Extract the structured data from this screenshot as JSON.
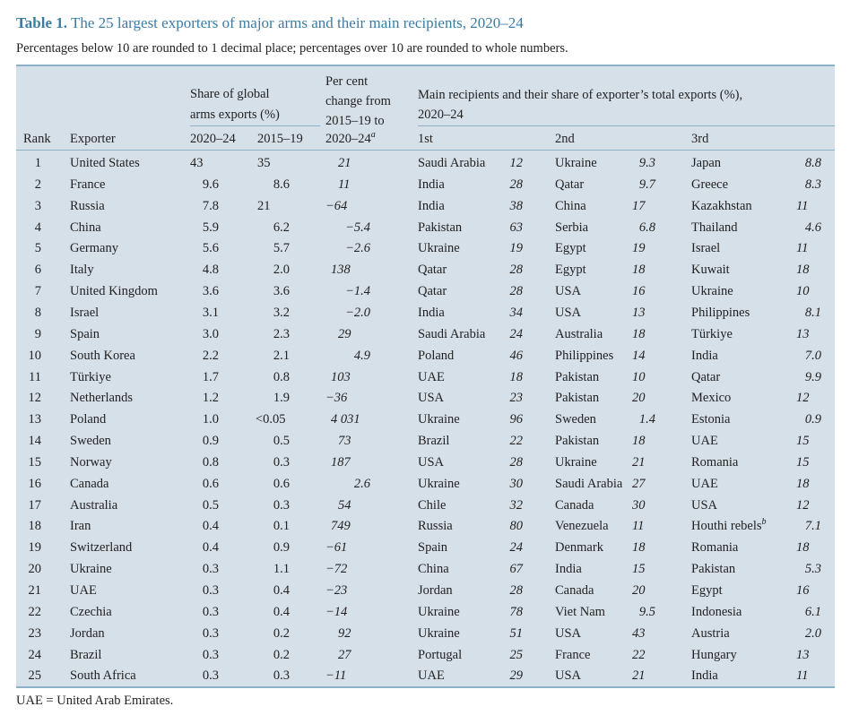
{
  "title": {
    "label": "Table 1.",
    "text": "The 25 largest exporters of major arms and their main recipients, 2020–24"
  },
  "subtitle": "Percentages below 10 are rounded to 1 decimal place; percentages over 10 are rounded to whole numbers.",
  "headers": {
    "rank": "Rank",
    "exporter": "Exporter",
    "share_group_line1": "Share of global",
    "share_group_line2": "arms exports (%)",
    "share_2020_24": "2020–24",
    "share_2015_19": "2015–19",
    "change_line1": "Per cent",
    "change_line2": "change from",
    "change_line3": "2015–19 to",
    "change_line4": "2020–24",
    "change_note": "a",
    "recipients_line1": "Main recipients and their share of exporter’s total exports (%),",
    "recipients_line2": "2020–24",
    "first": "1st",
    "second": "2nd",
    "third": "3rd"
  },
  "rows": [
    {
      "rank": "1",
      "exporter": "United States",
      "s2024": "43",
      "s2019": "35",
      "change": "21",
      "r1": "Saudi Arabia",
      "v1": "12",
      "r2": "Ukraine",
      "v2": "9.3",
      "r3": "Japan",
      "v3": "8.8"
    },
    {
      "rank": "2",
      "exporter": "France",
      "s2024": "9.6",
      "s2019": "8.6",
      "change": "11",
      "r1": "India",
      "v1": "28",
      "r2": "Qatar",
      "v2": "9.7",
      "r3": "Greece",
      "v3": "8.3"
    },
    {
      "rank": "3",
      "exporter": "Russia",
      "s2024": "7.8",
      "s2019": "21",
      "change": "−64",
      "r1": "India",
      "v1": "38",
      "r2": "China",
      "v2": "17",
      "r3": "Kazakhstan",
      "v3": "11"
    },
    {
      "rank": "4",
      "exporter": "China",
      "s2024": "5.9",
      "s2019": "6.2",
      "change": "−5.4",
      "r1": "Pakistan",
      "v1": "63",
      "r2": "Serbia",
      "v2": "6.8",
      "r3": "Thailand",
      "v3": "4.6"
    },
    {
      "rank": "5",
      "exporter": "Germany",
      "s2024": "5.6",
      "s2019": "5.7",
      "change": "−2.6",
      "r1": "Ukraine",
      "v1": "19",
      "r2": "Egypt",
      "v2": "19",
      "r3": "Israel",
      "v3": "11"
    },
    {
      "rank": "6",
      "exporter": "Italy",
      "s2024": "4.8",
      "s2019": "2.0",
      "change": "138",
      "r1": "Qatar",
      "v1": "28",
      "r2": "Egypt",
      "v2": "18",
      "r3": "Kuwait",
      "v3": "18"
    },
    {
      "rank": "7",
      "exporter": "United Kingdom",
      "s2024": "3.6",
      "s2019": "3.6",
      "change": "−1.4",
      "r1": "Qatar",
      "v1": "28",
      "r2": "USA",
      "v2": "16",
      "r3": "Ukraine",
      "v3": "10"
    },
    {
      "rank": "8",
      "exporter": "Israel",
      "s2024": "3.1",
      "s2019": "3.2",
      "change": "−2.0",
      "r1": "India",
      "v1": "34",
      "r2": "USA",
      "v2": "13",
      "r3": "Philippines",
      "v3": "8.1"
    },
    {
      "rank": "9",
      "exporter": "Spain",
      "s2024": "3.0",
      "s2019": "2.3",
      "change": "29",
      "r1": "Saudi Arabia",
      "v1": "24",
      "r2": "Australia",
      "v2": "18",
      "r3": "Türkiye",
      "v3": "13"
    },
    {
      "rank": "10",
      "exporter": "South Korea",
      "s2024": "2.2",
      "s2019": "2.1",
      "change": "4.9",
      "r1": "Poland",
      "v1": "46",
      "r2": "Philippines",
      "v2": "14",
      "r3": "India",
      "v3": "7.0"
    },
    {
      "rank": "11",
      "exporter": "Türkiye",
      "s2024": "1.7",
      "s2019": "0.8",
      "change": "103",
      "r1": "UAE",
      "v1": "18",
      "r2": "Pakistan",
      "v2": "10",
      "r3": "Qatar",
      "v3": "9.9"
    },
    {
      "rank": "12",
      "exporter": "Netherlands",
      "s2024": "1.2",
      "s2019": "1.9",
      "change": "−36",
      "r1": "USA",
      "v1": "23",
      "r2": "Pakistan",
      "v2": "20",
      "r3": "Mexico",
      "v3": "12"
    },
    {
      "rank": "13",
      "exporter": "Poland",
      "s2024": "1.0",
      "s2019": "<0.05",
      "change": "4 031",
      "r1": "Ukraine",
      "v1": "96",
      "r2": "Sweden",
      "v2": "1.4",
      "r3": "Estonia",
      "v3": "0.9"
    },
    {
      "rank": "14",
      "exporter": "Sweden",
      "s2024": "0.9",
      "s2019": "0.5",
      "change": "73",
      "r1": "Brazil",
      "v1": "22",
      "r2": "Pakistan",
      "v2": "18",
      "r3": "UAE",
      "v3": "15"
    },
    {
      "rank": "15",
      "exporter": "Norway",
      "s2024": "0.8",
      "s2019": "0.3",
      "change": "187",
      "r1": "USA",
      "v1": "28",
      "r2": "Ukraine",
      "v2": "21",
      "r3": "Romania",
      "v3": "15"
    },
    {
      "rank": "16",
      "exporter": "Canada",
      "s2024": "0.6",
      "s2019": "0.6",
      "change": "2.6",
      "r1": "Ukraine",
      "v1": "30",
      "r2": "Saudi Arabia",
      "v2": "27",
      "r3": "UAE",
      "v3": "18"
    },
    {
      "rank": "17",
      "exporter": "Australia",
      "s2024": "0.5",
      "s2019": "0.3",
      "change": "54",
      "r1": "Chile",
      "v1": "32",
      "r2": "Canada",
      "v2": "30",
      "r3": "USA",
      "v3": "12"
    },
    {
      "rank": "18",
      "exporter": "Iran",
      "s2024": "0.4",
      "s2019": "0.1",
      "change": "749",
      "r1": "Russia",
      "v1": "80",
      "r2": "Venezuela",
      "v2": "11",
      "r3": "Houthi rebels",
      "r3note": "b",
      "v3": "7.1"
    },
    {
      "rank": "19",
      "exporter": "Switzerland",
      "s2024": "0.4",
      "s2019": "0.9",
      "change": "−61",
      "r1": "Spain",
      "v1": "24",
      "r2": "Denmark",
      "v2": "18",
      "r3": "Romania",
      "v3": "18"
    },
    {
      "rank": "20",
      "exporter": "Ukraine",
      "s2024": "0.3",
      "s2019": "1.1",
      "change": "−72",
      "r1": "China",
      "v1": "67",
      "r2": "India",
      "v2": "15",
      "r3": "Pakistan",
      "v3": "5.3"
    },
    {
      "rank": "21",
      "exporter": "UAE",
      "s2024": "0.3",
      "s2019": "0.4",
      "change": "−23",
      "r1": "Jordan",
      "v1": "28",
      "r2": "Canada",
      "v2": "20",
      "r3": "Egypt",
      "v3": "16"
    },
    {
      "rank": "22",
      "exporter": "Czechia",
      "s2024": "0.3",
      "s2019": "0.4",
      "change": "−14",
      "r1": "Ukraine",
      "v1": "78",
      "r2": "Viet Nam",
      "v2": "9.5",
      "r3": "Indonesia",
      "v3": "6.1"
    },
    {
      "rank": "23",
      "exporter": "Jordan",
      "s2024": "0.3",
      "s2019": "0.2",
      "change": "92",
      "r1": "Ukraine",
      "v1": "51",
      "r2": "USA",
      "v2": "43",
      "r3": "Austria",
      "v3": "2.0"
    },
    {
      "rank": "24",
      "exporter": "Brazil",
      "s2024": "0.3",
      "s2019": "0.2",
      "change": "27",
      "r1": "Portugal",
      "v1": "25",
      "r2": "France",
      "v2": "22",
      "r3": "Hungary",
      "v3": "13"
    },
    {
      "rank": "25",
      "exporter": "South Africa",
      "s2024": "0.3",
      "s2019": "0.3",
      "change": "−11",
      "r1": "UAE",
      "v1": "29",
      "r2": "USA",
      "v2": "21",
      "r3": "India",
      "v3": "11"
    }
  ],
  "footnote": "UAE = United Arab Emirates."
}
